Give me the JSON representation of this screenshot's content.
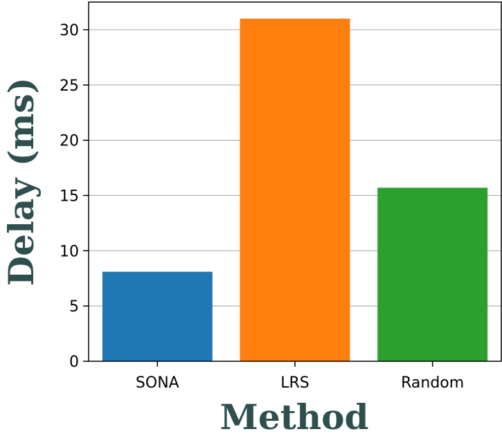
{
  "chart_data": {
    "type": "bar",
    "title": "",
    "xlabel": "Method",
    "ylabel": "Delay (ms)",
    "categories": [
      "SONA",
      "LRS",
      "Random"
    ],
    "values": [
      8.1,
      31.0,
      15.7
    ],
    "colors": [
      "#1f77b4",
      "#ff7f0e",
      "#2ca02c"
    ],
    "ylim": [
      0,
      32.5
    ],
    "yticks": [
      0,
      5,
      10,
      15,
      20,
      25,
      30
    ],
    "grid": "horizontal",
    "legend": "none",
    "axis_title_color": "#2f4f4f"
  }
}
